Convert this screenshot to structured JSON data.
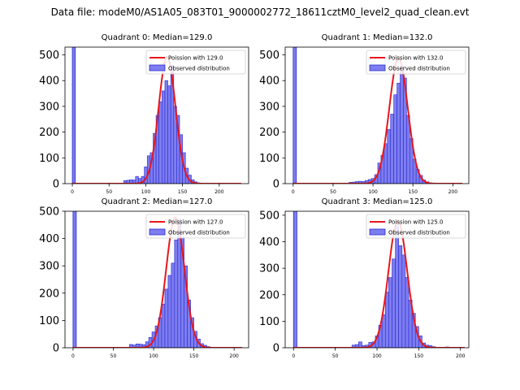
{
  "suptitle": "Data file: modeM0/AS1A05_083T01_9000002772_18611cztM0_level2_quad_clean.evt",
  "colors": {
    "poisson_line": "#e8161b",
    "hist_fill": "#7d7df0",
    "hist_edge": "#2b2bd0",
    "axis": "#000000"
  },
  "chart_data": [
    {
      "type": "bar",
      "title": "Quadrant 0: Median=129.0",
      "median": 129.0,
      "xlim": [
        -10,
        240
      ],
      "ylim": [
        0,
        530
      ],
      "xticks": [
        0,
        50,
        100,
        150,
        200
      ],
      "yticks": [
        0,
        100,
        200,
        300,
        400,
        500
      ],
      "legend": {
        "placement": "top-right",
        "poisson_label": "Poission with 129.0",
        "observed_label": "Observed distribution"
      },
      "spike": {
        "x": 0,
        "width": 4,
        "value": 600
      },
      "bins": [
        [
          70,
          12
        ],
        [
          74,
          13
        ],
        [
          78,
          15
        ],
        [
          82,
          14
        ],
        [
          86,
          28
        ],
        [
          90,
          20
        ],
        [
          94,
          28
        ],
        [
          98,
          65
        ],
        [
          102,
          108
        ],
        [
          106,
          120
        ],
        [
          110,
          195
        ],
        [
          114,
          265
        ],
        [
          118,
          318
        ],
        [
          122,
          360
        ],
        [
          126,
          400
        ],
        [
          130,
          380
        ],
        [
          134,
          460
        ],
        [
          138,
          300
        ],
        [
          142,
          265
        ],
        [
          146,
          190
        ],
        [
          150,
          120
        ],
        [
          154,
          60
        ],
        [
          158,
          33
        ],
        [
          162,
          15
        ],
        [
          166,
          7
        ],
        [
          170,
          3
        ]
      ],
      "bin_width": 4,
      "poisson": {
        "mean": 129,
        "peak": 493,
        "sigma": 11.4,
        "x_range": [
          0,
          230
        ]
      }
    },
    {
      "type": "bar",
      "title": "Quadrant 1: Median=132.0",
      "median": 132.0,
      "xlim": [
        -10,
        220
      ],
      "ylim": [
        0,
        530
      ],
      "xticks": [
        0,
        50,
        100,
        150,
        200
      ],
      "yticks": [
        0,
        100,
        200,
        300,
        400,
        500
      ],
      "legend": {
        "placement": "top-right",
        "poisson_label": "Poission with 132.0",
        "observed_label": "Observed distribution"
      },
      "spike": {
        "x": 0,
        "width": 4,
        "value": 600
      },
      "bins": [
        [
          70,
          5
        ],
        [
          74,
          6
        ],
        [
          78,
          8
        ],
        [
          82,
          9
        ],
        [
          86,
          8
        ],
        [
          90,
          12
        ],
        [
          94,
          16
        ],
        [
          98,
          20
        ],
        [
          102,
          35
        ],
        [
          106,
          80
        ],
        [
          110,
          110
        ],
        [
          114,
          155
        ],
        [
          118,
          210
        ],
        [
          122,
          270
        ],
        [
          126,
          345
        ],
        [
          130,
          390
        ],
        [
          134,
          455
        ],
        [
          138,
          410
        ],
        [
          142,
          265
        ],
        [
          146,
          175
        ],
        [
          150,
          95
        ],
        [
          154,
          55
        ],
        [
          158,
          32
        ],
        [
          162,
          14
        ],
        [
          166,
          7
        ],
        [
          170,
          3
        ]
      ],
      "bin_width": 4,
      "poisson": {
        "mean": 132,
        "peak": 488,
        "sigma": 11.5,
        "x_range": [
          0,
          212
        ]
      }
    },
    {
      "type": "bar",
      "title": "Quadrant 2: Median=127.0",
      "median": 127.0,
      "xlim": [
        -10,
        218
      ],
      "ylim": [
        0,
        500
      ],
      "xticks": [
        0,
        50,
        100,
        150,
        200
      ],
      "yticks": [
        0,
        100,
        200,
        300,
        400,
        500
      ],
      "legend": {
        "placement": "top-right",
        "poisson_label": "Poission with 127.0",
        "observed_label": "Observed distribution"
      },
      "spike": {
        "x": 0,
        "width": 4,
        "value": 600
      },
      "bins": [
        [
          70,
          12
        ],
        [
          74,
          10
        ],
        [
          78,
          14
        ],
        [
          82,
          13
        ],
        [
          86,
          11
        ],
        [
          90,
          22
        ],
        [
          94,
          38
        ],
        [
          98,
          58
        ],
        [
          102,
          80
        ],
        [
          106,
          110
        ],
        [
          110,
          160
        ],
        [
          114,
          215
        ],
        [
          118,
          265
        ],
        [
          122,
          310
        ],
        [
          126,
          395
        ],
        [
          130,
          470
        ],
        [
          134,
          405
        ],
        [
          138,
          300
        ],
        [
          142,
          175
        ],
        [
          146,
          110
        ],
        [
          150,
          60
        ],
        [
          154,
          32
        ],
        [
          158,
          15
        ],
        [
          162,
          9
        ],
        [
          166,
          4
        ],
        [
          170,
          2
        ]
      ],
      "bin_width": 4,
      "poisson": {
        "mean": 127,
        "peak": 478,
        "sigma": 11.3,
        "x_range": [
          0,
          210
        ]
      }
    },
    {
      "type": "bar",
      "title": "Quadrant 3: Median=125.0",
      "median": 125.0,
      "xlim": [
        -10,
        210
      ],
      "ylim": [
        0,
        515
      ],
      "xticks": [
        0,
        50,
        100,
        150,
        200
      ],
      "yticks": [
        0,
        100,
        200,
        300,
        400,
        500
      ],
      "legend": {
        "placement": "top-right",
        "poisson_label": "Poission with 125.0",
        "observed_label": "Observed distribution"
      },
      "spike": {
        "x": 0,
        "width": 4,
        "value": 600
      },
      "bins": [
        [
          70,
          10
        ],
        [
          74,
          12
        ],
        [
          78,
          22
        ],
        [
          82,
          8
        ],
        [
          86,
          10
        ],
        [
          90,
          20
        ],
        [
          94,
          22
        ],
        [
          98,
          45
        ],
        [
          102,
          85
        ],
        [
          106,
          125
        ],
        [
          110,
          210
        ],
        [
          114,
          265
        ],
        [
          118,
          335
        ],
        [
          122,
          460
        ],
        [
          126,
          385
        ],
        [
          130,
          350
        ],
        [
          134,
          265
        ],
        [
          138,
          180
        ],
        [
          142,
          130
        ],
        [
          146,
          80
        ],
        [
          150,
          45
        ],
        [
          154,
          18
        ],
        [
          158,
          10
        ],
        [
          162,
          8
        ],
        [
          166,
          4
        ],
        [
          182,
          3
        ]
      ],
      "bin_width": 4,
      "poisson": {
        "mean": 125,
        "peak": 478,
        "sigma": 11.2,
        "x_range": [
          0,
          205
        ]
      }
    }
  ]
}
